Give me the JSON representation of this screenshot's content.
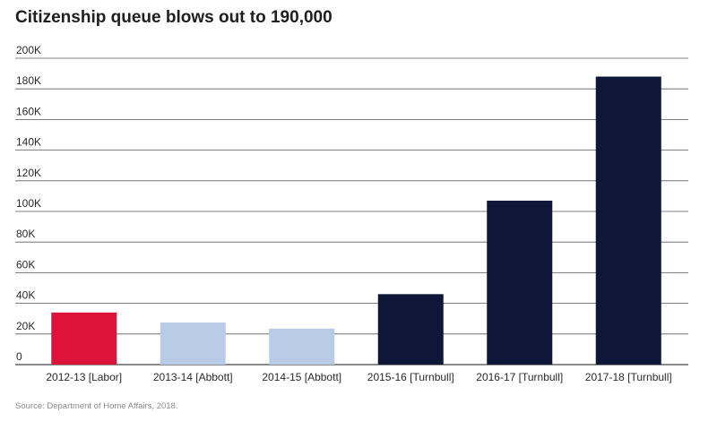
{
  "chart_data": {
    "type": "bar",
    "title": "Citizenship queue blows out to 190,000",
    "categories": [
      "2012-13 [Labor]",
      "2013-14 [Abbott]",
      "2014-15 [Abbott]",
      "2015-16 [Turnbull]",
      "2016-17 [Turnbull]",
      "2017-18 [Turnbull]"
    ],
    "values": [
      34000,
      27500,
      23500,
      46000,
      107000,
      188000
    ],
    "bar_colors": [
      "#dc143c",
      "#b8cce8",
      "#b8cce8",
      "#0e1738",
      "#0e1738",
      "#0e1738"
    ],
    "ylim": [
      0,
      200000
    ],
    "yticks": [
      {
        "value": 0,
        "label": "0"
      },
      {
        "value": 20000,
        "label": "20K"
      },
      {
        "value": 40000,
        "label": "40K"
      },
      {
        "value": 60000,
        "label": "60K"
      },
      {
        "value": 80000,
        "label": "80K"
      },
      {
        "value": 100000,
        "label": "100K"
      },
      {
        "value": 120000,
        "label": "120K"
      },
      {
        "value": 140000,
        "label": "140K"
      },
      {
        "value": 160000,
        "label": "160K"
      },
      {
        "value": 180000,
        "label": "180K"
      },
      {
        "value": 200000,
        "label": "200K"
      }
    ],
    "grid": true,
    "xlabel": "",
    "ylabel": ""
  },
  "source": "Source: Department of Home Affairs, 2018."
}
